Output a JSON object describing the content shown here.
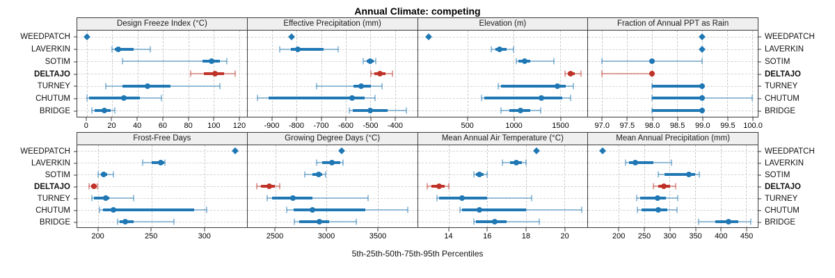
{
  "title": "Annual Climate: competing",
  "footer": "5th-25th-50th-75th-95th Percentiles",
  "colors": {
    "series": "#1f77b4",
    "series_light": "rgba(31,119,180,0.45)",
    "highlight": "#bf3228",
    "highlight_light": "rgba(191,50,40,0.45)",
    "grid": "#c9c9c9",
    "header_bg": "#efefef",
    "border": "#3a3a3a"
  },
  "sites": [
    {
      "name": "WEEDPATCH",
      "bold": false,
      "highlight": false
    },
    {
      "name": "LAVERKIN",
      "bold": false,
      "highlight": false
    },
    {
      "name": "SOTIM",
      "bold": false,
      "highlight": false
    },
    {
      "name": "DELTAJO",
      "bold": true,
      "highlight": true
    },
    {
      "name": "TURNEY",
      "bold": false,
      "highlight": false
    },
    {
      "name": "CHUTUM",
      "bold": false,
      "highlight": false
    },
    {
      "name": "BRIDGE",
      "bold": false,
      "highlight": false
    }
  ],
  "chart_data": {
    "type": "dot-plot-percentile-trellis",
    "percentiles": [
      "5th",
      "25th",
      "50th",
      "75th",
      "95th"
    ],
    "legend_note": "5th-25th-50th-75th-95th Percentiles; thin line = 5th-95th, thick bar = 25th-75th, dot = median; DELTAJO highlighted red; single diamond = single value",
    "rows": [
      "WEEDPATCH",
      "LAVERKIN",
      "SOTIM",
      "DELTAJO",
      "TURNEY",
      "CHUTUM",
      "BRIDGE"
    ],
    "panels": [
      {
        "title": "Design Freeze Index (°C)",
        "xlim": [
          -7.5,
          126
        ],
        "ticks": [
          0,
          20,
          40,
          60,
          80,
          100,
          120
        ],
        "tick_labels": [
          "0",
          "20",
          "40",
          "60",
          "80",
          "100",
          "120"
        ],
        "values": {
          "WEEDPATCH": [
            0
          ],
          "LAVERKIN": [
            20,
            22,
            25,
            37,
            50
          ],
          "SOTIM": [
            28,
            91,
            98,
            105,
            110
          ],
          "DELTAJO": [
            82,
            92,
            101,
            108,
            117
          ],
          "TURNEY": [
            15,
            28,
            48,
            66,
            105
          ],
          "CHUTUM": [
            0,
            2,
            29,
            42,
            59
          ],
          "BRIDGE": [
            4,
            6,
            14,
            19,
            22
          ]
        }
      },
      {
        "title": "Effective Precipitation (mm)",
        "xlim": [
          -1000,
          -310
        ],
        "ticks": [
          -900,
          -800,
          -700,
          -600,
          -500,
          -400
        ],
        "tick_labels": [
          "-900",
          "-800",
          "-700",
          "-600",
          "-500",
          "-400"
        ],
        "values": {
          "WEEDPATCH": [
            -820
          ],
          "LAVERKIN": [
            -870,
            -825,
            -795,
            -690,
            -630
          ],
          "SOTIM": [
            -529,
            -515,
            -500,
            -488,
            -479
          ],
          "DELTAJO": [
            -498,
            -485,
            -462,
            -438,
            -410
          ],
          "TURNEY": [
            -720,
            -570,
            -537,
            -498,
            -452
          ],
          "CHUTUM": [
            -960,
            -915,
            -575,
            -525,
            -482
          ],
          "BRIDGE": [
            -585,
            -572,
            -500,
            -430,
            -355
          ]
        }
      },
      {
        "title": "Elevation (m)",
        "xlim": [
          -35,
          1795
        ],
        "ticks": [
          500,
          1000,
          1500
        ],
        "tick_labels": [
          "500",
          "1000",
          "1500"
        ],
        "values": {
          "WEEDPATCH": [
            85
          ],
          "LAVERKIN": [
            760,
            800,
            850,
            925,
            1000
          ],
          "SOTIM": [
            1025,
            1050,
            1115,
            1180,
            1430
          ],
          "DELTAJO": [
            1550,
            1585,
            1615,
            1660,
            1725
          ],
          "TURNEY": [
            830,
            860,
            1470,
            1560,
            1645
          ],
          "CHUTUM": [
            655,
            685,
            1300,
            1520,
            1610
          ],
          "BRIDGE": [
            860,
            950,
            1070,
            1180,
            1290
          ]
        }
      },
      {
        "title": "Fraction of Annual PPT as Rain",
        "xlim": [
          96.72,
          100.11
        ],
        "ticks": [
          97.0,
          97.5,
          98.0,
          98.5,
          99.0,
          99.5,
          100.0
        ],
        "tick_labels": [
          "97.0",
          "97.5",
          "98.0",
          "98.5",
          "99.0",
          "99.5",
          "100.0"
        ],
        "values": {
          "WEEDPATCH": [
            99.0
          ],
          "LAVERKIN": [
            99.0
          ],
          "SOTIM": [
            97.0,
            98.0,
            98.0,
            98.0,
            99.0
          ],
          "DELTAJO": [
            97.0,
            98.0,
            98.0,
            98.0,
            98.0
          ],
          "TURNEY": [
            98.0,
            98.0,
            99.0,
            99.0,
            99.0
          ],
          "CHUTUM": [
            98.0,
            98.0,
            99.0,
            99.0,
            100.0
          ],
          "BRIDGE": [
            98.0,
            98.0,
            99.0,
            99.0,
            99.0
          ]
        }
      },
      {
        "title": "Frost-Free Days",
        "xlim": [
          180,
          340
        ],
        "ticks": [
          200,
          250,
          300
        ],
        "tick_labels": [
          "200",
          "250",
          "300"
        ],
        "values": {
          "WEEDPATCH": [
            329
          ],
          "LAVERKIN": [
            242,
            250,
            259,
            262,
            263
          ],
          "SOTIM": [
            200,
            202,
            205,
            208,
            214
          ],
          "DELTAJO": [
            191,
            193,
            196,
            198,
            199
          ],
          "TURNEY": [
            194,
            196,
            207,
            210,
            233
          ],
          "CHUTUM": [
            201,
            204,
            214,
            290,
            302
          ],
          "BRIDGE": [
            218,
            220,
            225,
            233,
            271
          ]
        }
      },
      {
        "title": "Growing Degree Days (°C)",
        "xlim": [
          2230,
          3885
        ],
        "ticks": [
          2500,
          3000,
          3500
        ],
        "tick_labels": [
          "2500",
          "3000",
          "3500"
        ],
        "values": {
          "WEEDPATCH": [
            3145
          ],
          "LAVERKIN": [
            2905,
            2960,
            3055,
            3135,
            3160
          ],
          "SOTIM": [
            2790,
            2865,
            2925,
            2958,
            2990
          ],
          "DELTAJO": [
            2320,
            2360,
            2445,
            2495,
            2545
          ],
          "TURNEY": [
            2425,
            2470,
            2675,
            2865,
            3405
          ],
          "CHUTUM": [
            2615,
            2680,
            2860,
            3380,
            3790
          ],
          "BRIDGE": [
            2690,
            2735,
            2928,
            3025,
            3290
          ]
        }
      },
      {
        "title": "Mean Annual Air Temperature (°C)",
        "xlim": [
          12.4,
          21.2
        ],
        "ticks": [
          14,
          16,
          18,
          20
        ],
        "tick_labels": [
          "14",
          "16",
          "18",
          "20"
        ],
        "values": {
          "WEEDPATCH": [
            18.55
          ],
          "LAVERKIN": [
            16.8,
            17.2,
            17.5,
            17.8,
            18.0
          ],
          "SOTIM": [
            15.3,
            15.4,
            15.6,
            15.8,
            16.0
          ],
          "DELTAJO": [
            12.9,
            13.1,
            13.5,
            13.8,
            14.0
          ],
          "TURNEY": [
            13.4,
            13.5,
            14.7,
            16.0,
            18.3
          ],
          "CHUTUM": [
            14.6,
            14.7,
            15.6,
            18.0,
            20.9
          ],
          "BRIDGE": [
            15.3,
            15.4,
            16.4,
            17.0,
            18.7
          ]
        }
      },
      {
        "title": "Mean Annual Precipitation (mm)",
        "xlim": [
          140,
          473
        ],
        "ticks": [
          200,
          250,
          300,
          350,
          400,
          450
        ],
        "tick_labels": [
          "200",
          "250",
          "300",
          "350",
          "400",
          "450"
        ],
        "values": {
          "WEEDPATCH": [
            168
          ],
          "LAVERKIN": [
            213,
            220,
            232,
            268,
            303
          ],
          "SOTIM": [
            278,
            290,
            338,
            350,
            358
          ],
          "DELTAJO": [
            268,
            277,
            288,
            301,
            312
          ],
          "TURNEY": [
            235,
            242,
            276,
            293,
            316
          ],
          "CHUTUM": [
            237,
            245,
            278,
            295,
            315
          ],
          "BRIDGE": [
            357,
            390,
            415,
            435,
            460
          ]
        }
      }
    ]
  }
}
